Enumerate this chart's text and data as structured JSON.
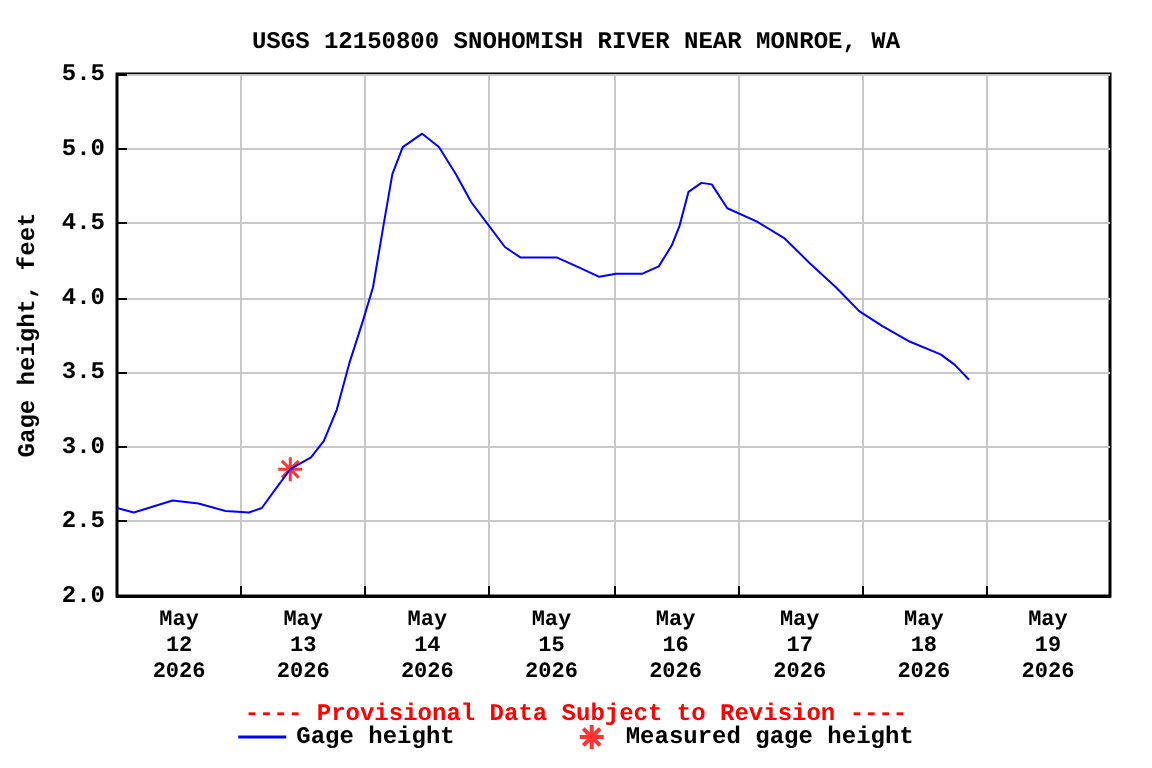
{
  "chart_data": {
    "type": "line",
    "title": "USGS 12150800 SNOHOMISH RIVER NEAR MONROE, WA",
    "ylabel": "Gage height, feet",
    "annotations": [
      "---- Provisional Data Subject to Revision ----"
    ],
    "xlim": [
      "2026-05-12T00:00",
      "2026-05-20T00:00"
    ],
    "xticks": [
      {
        "value": "2026-05-12T12:00",
        "label": "May\n12\n2026"
      },
      {
        "value": "2026-05-13T00:00",
        "label": null
      },
      {
        "value": "2026-05-13T12:00",
        "label": "May\n13\n2026"
      },
      {
        "value": "2026-05-14T00:00",
        "label": null
      },
      {
        "value": "2026-05-14T12:00",
        "label": "May\n14\n2026"
      },
      {
        "value": "2026-05-15T00:00",
        "label": null
      },
      {
        "value": "2026-05-15T12:00",
        "label": "May\n15\n2026"
      },
      {
        "value": "2026-05-16T00:00",
        "label": null
      },
      {
        "value": "2026-05-16T12:00",
        "label": "May\n16\n2026"
      },
      {
        "value": "2026-05-17T00:00",
        "label": null
      },
      {
        "value": "2026-05-17T12:00",
        "label": "May\n17\n2026"
      },
      {
        "value": "2026-05-18T00:00",
        "label": null
      },
      {
        "value": "2026-05-18T12:00",
        "label": "May\n18\n2026"
      },
      {
        "value": "2026-05-19T00:00",
        "label": null
      },
      {
        "value": "2026-05-19T12:00",
        "label": "May\n19\n2026"
      }
    ],
    "ylim": [
      2.0,
      5.5
    ],
    "yticks": [
      {
        "value": 2,
        "label": "2.0"
      },
      2.5,
      {
        "value": 3,
        "label": "3.0"
      },
      3.5,
      {
        "value": 4,
        "label": "4.0"
      },
      4.5,
      {
        "value": 5,
        "label": "5.0"
      },
      5.5
    ],
    "grid": true,
    "legend": "bottom",
    "series": [
      {
        "name": "Gage height",
        "color": "#0000ff",
        "marker": "none",
        "line_style": "solid",
        "x": [
          "2026-05-12T00:00",
          "2026-05-12T03:15",
          "2026-05-12T07:00",
          "2026-05-12T10:45",
          "2026-05-12T15:45",
          "2026-05-12T21:00",
          "2026-05-13T01:30",
          "2026-05-13T04:00",
          "2026-05-13T06:30",
          "2026-05-13T09:30",
          "2026-05-13T13:30",
          "2026-05-13T16:00",
          "2026-05-13T18:30",
          "2026-05-13T21:00",
          "2026-05-13T23:30",
          "2026-05-14T01:30",
          "2026-05-14T03:30",
          "2026-05-14T05:15",
          "2026-05-14T07:15",
          "2026-05-14T11:00",
          "2026-05-14T14:15",
          "2026-05-14T17:30",
          "2026-05-14T20:30",
          "2026-05-14T23:45",
          "2026-05-15T03:00",
          "2026-05-15T06:00",
          "2026-05-15T13:00",
          "2026-05-15T17:30",
          "2026-05-15T21:15",
          "2026-05-16T00:30",
          "2026-05-16T05:30",
          "2026-05-16T08:45",
          "2026-05-16T11:15",
          "2026-05-16T12:45",
          "2026-05-16T14:30",
          "2026-05-16T17:00",
          "2026-05-16T19:00",
          "2026-05-16T22:00",
          "2026-05-17T03:45",
          "2026-05-17T09:00",
          "2026-05-17T14:00",
          "2026-05-17T19:00",
          "2026-05-17T23:30",
          "2026-05-18T04:00",
          "2026-05-18T09:00",
          "2026-05-18T15:15",
          "2026-05-18T18:00",
          "2026-05-18T20:45"
        ],
        "values": [
          2.59,
          2.56,
          2.6,
          2.64,
          2.62,
          2.57,
          2.56,
          2.59,
          2.71,
          2.85,
          2.93,
          3.04,
          3.25,
          3.57,
          3.84,
          4.07,
          4.48,
          4.83,
          5.01,
          5.1,
          5.01,
          4.83,
          4.64,
          4.49,
          4.34,
          4.27,
          4.27,
          4.2,
          4.14,
          4.16,
          4.16,
          4.21,
          4.35,
          4.48,
          4.71,
          4.77,
          4.76,
          4.6,
          4.51,
          4.4,
          4.23,
          4.07,
          3.91,
          3.81,
          3.71,
          3.62,
          3.55,
          3.45
        ]
      },
      {
        "name": "Measured gage height",
        "type": "scatter",
        "color": "#ff0000",
        "marker": "cross",
        "x": [
          "2026-05-13T09:30"
        ],
        "values": [
          2.85
        ]
      }
    ]
  }
}
